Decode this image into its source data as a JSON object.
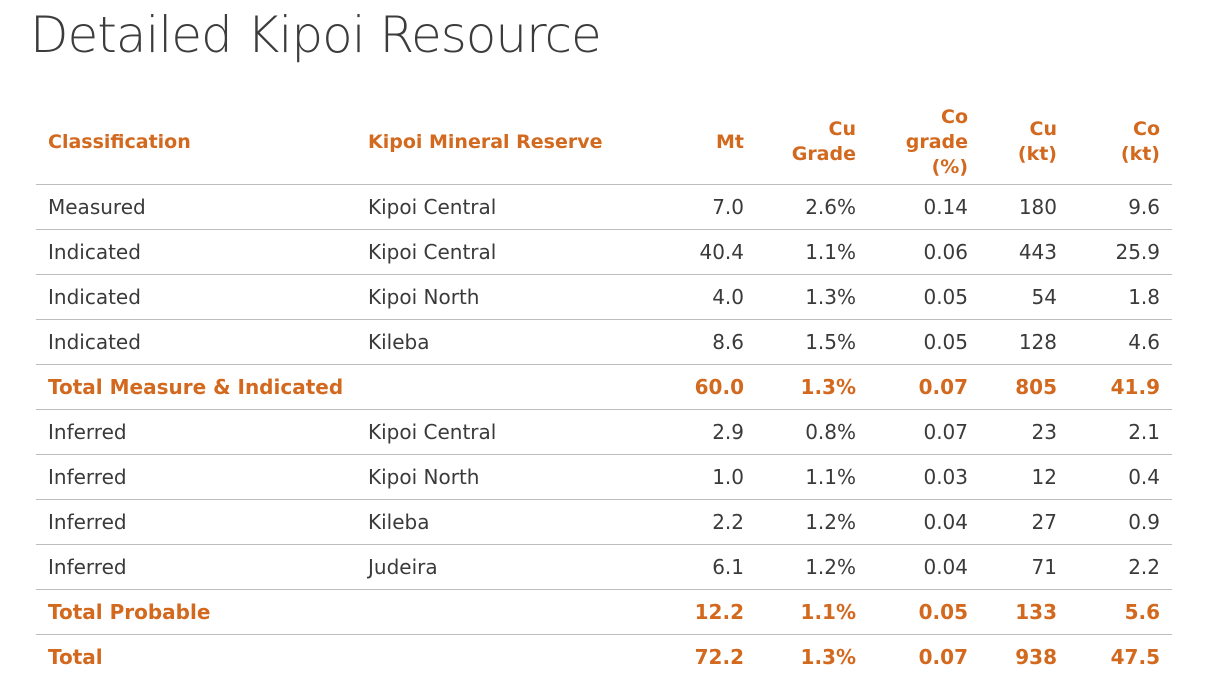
{
  "title": "Detailed Kipoi Resource",
  "table": {
    "headers": {
      "classification": "Classification",
      "reserve": "Kipoi Mineral Reserve",
      "mt": "Mt",
      "cu_grade_1": "Cu",
      "cu_grade_2": "Grade",
      "co_grade_1": "Co",
      "co_grade_2": "grade",
      "co_grade_3": "(%)",
      "cu_kt_1": "Cu",
      "cu_kt_2": "(kt)",
      "co_kt_1": "Co",
      "co_kt_2": "(kt)"
    },
    "rows": [
      {
        "classification": "Measured",
        "reserve": "Kipoi Central",
        "mt": "7.0",
        "cu_grade": "2.6%",
        "co_grade": "0.14",
        "cu_kt": "180",
        "co_kt": "9.6"
      },
      {
        "classification": "Indicated",
        "reserve": "Kipoi Central",
        "mt": "40.4",
        "cu_grade": "1.1%",
        "co_grade": "0.06",
        "cu_kt": "443",
        "co_kt": "25.9"
      },
      {
        "classification": "Indicated",
        "reserve": "Kipoi North",
        "mt": "4.0",
        "cu_grade": "1.3%",
        "co_grade": "0.05",
        "cu_kt": "54",
        "co_kt": "1.8"
      },
      {
        "classification": "Indicated",
        "reserve": "Kileba",
        "mt": "8.6",
        "cu_grade": "1.5%",
        "co_grade": "0.05",
        "cu_kt": "128",
        "co_kt": "4.6"
      },
      {
        "classification": "Total Measure & Indicated",
        "reserve": "",
        "mt": "60.0",
        "cu_grade": "1.3%",
        "co_grade": "0.07",
        "cu_kt": "805",
        "co_kt": "41.9"
      },
      {
        "classification": "Inferred",
        "reserve": "Kipoi Central",
        "mt": "2.9",
        "cu_grade": "0.8%",
        "co_grade": "0.07",
        "cu_kt": "23",
        "co_kt": "2.1"
      },
      {
        "classification": "Inferred",
        "reserve": "Kipoi North",
        "mt": "1.0",
        "cu_grade": "1.1%",
        "co_grade": "0.03",
        "cu_kt": "12",
        "co_kt": "0.4"
      },
      {
        "classification": "Inferred",
        "reserve": "Kileba",
        "mt": "2.2",
        "cu_grade": "1.2%",
        "co_grade": "0.04",
        "cu_kt": "27",
        "co_kt": "0.9"
      },
      {
        "classification": "Inferred",
        "reserve": "Judeira",
        "mt": "6.1",
        "cu_grade": "1.2%",
        "co_grade": "0.04",
        "cu_kt": "71",
        "co_kt": "2.2"
      },
      {
        "classification": "Total Probable",
        "reserve": "",
        "mt": "12.2",
        "cu_grade": "1.1%",
        "co_grade": "0.05",
        "cu_kt": "133",
        "co_kt": "5.6"
      },
      {
        "classification": "Total",
        "reserve": "",
        "mt": "72.2",
        "cu_grade": "1.3%",
        "co_grade": "0.07",
        "cu_kt": "938",
        "co_kt": "47.5"
      }
    ]
  },
  "colors": {
    "accent": "#d2691e",
    "text": "#3a3a3a",
    "rule": "#bdbdbd"
  }
}
